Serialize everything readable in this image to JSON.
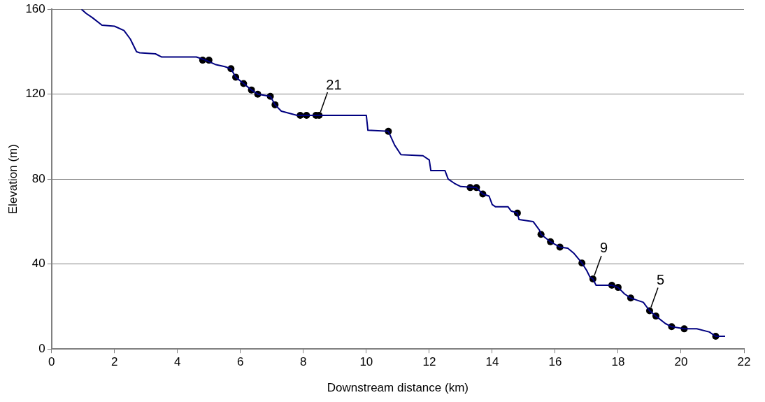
{
  "chart_data": {
    "type": "line",
    "xlabel": "Downstream distance (km)",
    "ylabel": "Elevation (m)",
    "xlim": [
      0,
      22
    ],
    "xticks": [
      0,
      2,
      4,
      6,
      8,
      10,
      12,
      14,
      16,
      18,
      20,
      22
    ],
    "ylim": [
      0,
      160
    ],
    "yticks": [
      0,
      40,
      80,
      120,
      160
    ],
    "grid": "y",
    "legend": false,
    "series": [
      {
        "color": "#000080",
        "marker": "none",
        "x": [
          0.95,
          1.1,
          1.3,
          1.6,
          2.0,
          2.3,
          2.5,
          2.7,
          2.8,
          3.3,
          3.5,
          4.6,
          4.9,
          5.2,
          5.5,
          5.7,
          5.85,
          6.1,
          6.35,
          6.55,
          6.95,
          7.1,
          7.3,
          7.8,
          10.0,
          10.05,
          10.7,
          10.9,
          11.1,
          11.8,
          12.0,
          12.05,
          12.5,
          12.6,
          12.8,
          13.0,
          13.5,
          13.7,
          13.9,
          14.0,
          14.1,
          14.5,
          14.6,
          14.8,
          14.85,
          15.3,
          15.5,
          15.55,
          15.85,
          16.15,
          16.4,
          16.6,
          16.85,
          17.0,
          17.1,
          17.2,
          17.3,
          17.8,
          18.0,
          18.2,
          18.4,
          18.6,
          18.8,
          19.0,
          19.2,
          19.5,
          19.7,
          20.1,
          20.5,
          20.9,
          21.1,
          21.4
        ],
        "values": [
          160,
          158,
          156,
          152.5,
          152,
          150,
          146,
          140,
          139.5,
          139,
          137.5,
          137.5,
          136,
          134,
          133,
          132,
          128,
          125,
          122,
          120,
          119,
          115,
          112,
          110,
          110,
          103,
          102.5,
          96,
          91.5,
          91,
          89,
          84,
          84,
          80,
          78,
          76.5,
          76,
          73,
          72,
          68,
          67,
          67,
          65,
          64,
          61,
          60,
          56,
          54,
          50.5,
          48,
          47.5,
          45,
          40.5,
          37,
          34,
          33,
          30,
          30,
          29,
          26,
          24,
          23,
          22,
          18,
          15.5,
          12,
          10.5,
          9.5,
          9.5,
          8,
          6,
          6
        ]
      },
      {
        "type": "scatter",
        "color": "#000000",
        "marker": "circle",
        "x": [
          4.8,
          5.0,
          5.7,
          5.85,
          6.1,
          6.35,
          6.55,
          6.95,
          7.1,
          7.9,
          8.1,
          8.4,
          8.5,
          10.7,
          13.3,
          13.5,
          13.7,
          14.8,
          15.55,
          15.85,
          16.15,
          16.85,
          17.2,
          17.8,
          18.0,
          18.4,
          19.0,
          19.2,
          19.7,
          20.1,
          21.1
        ],
        "values": [
          136,
          136,
          132,
          128,
          125,
          122,
          120,
          119,
          115,
          110,
          110,
          110,
          110,
          102.5,
          76,
          76,
          73,
          64,
          54,
          50.5,
          48,
          40.5,
          33,
          30,
          29,
          24,
          18,
          15.5,
          10.5,
          9.5,
          6
        ]
      }
    ],
    "annotations": [
      {
        "text": "21",
        "x": 8.5,
        "y": 110
      },
      {
        "text": "9",
        "x": 17.2,
        "y": 33
      },
      {
        "text": "5",
        "x": 19.0,
        "y": 18
      }
    ]
  }
}
